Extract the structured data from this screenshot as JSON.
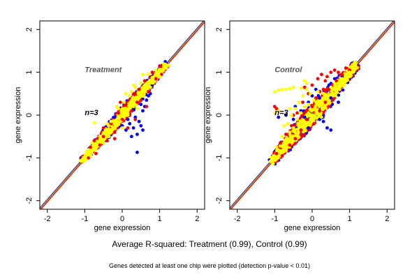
{
  "captions": {
    "main": "Average R-squared: Treatment (0.99), Control (0.99)",
    "sub": "Genes detected at least one chip were plotted (detection p-value < 0.01)"
  },
  "colors": {
    "frame": "#000000",
    "diagonal_red": "#e00000",
    "diagonal_blue": "#1f3fbf",
    "diagonal_orange": "#e08a00",
    "series_blue": "#0000ff",
    "series_red": "#ff0000",
    "series_yellow": "#ffff00",
    "annotation": "#555555"
  },
  "chart_data": [
    {
      "type": "scatter",
      "title": "",
      "xlabel": "gene expression",
      "ylabel": "gene expression",
      "xlim": [
        -2.2,
        2.2
      ],
      "ylim": [
        -2.2,
        2.2
      ],
      "xticks": [
        -2,
        -1,
        0,
        1,
        2
      ],
      "yticks": [
        -2,
        -1,
        0,
        1,
        2
      ],
      "grid": false,
      "annotations": [
        {
          "text": "Treatment",
          "x": -1.0,
          "y": 1.0
        },
        {
          "text": "n=3",
          "x": -1.0,
          "y": 0.0
        }
      ],
      "band": {
        "xmin": -1.1,
        "xmax": 1.2,
        "halfwidth": 0.09
      },
      "series": [
        {
          "color": "blue",
          "points": [
            [
              -0.2,
              -0.05
            ],
            [
              0.0,
              -0.25
            ],
            [
              0.1,
              -0.35
            ],
            [
              0.2,
              -0.2
            ],
            [
              0.3,
              -0.3
            ],
            [
              0.35,
              -0.05
            ],
            [
              0.4,
              -0.45
            ],
            [
              0.45,
              -0.15
            ],
            [
              0.5,
              -0.25
            ],
            [
              0.55,
              0.1
            ],
            [
              0.6,
              0.2
            ],
            [
              0.65,
              0.35
            ],
            [
              0.4,
              -0.87
            ],
            [
              0.7,
              0.45
            ],
            [
              0.25,
              -0.5
            ],
            [
              0.75,
              0.5
            ],
            [
              0.8,
              0.7
            ],
            [
              0.9,
              0.85
            ],
            [
              0.5,
              0.25
            ],
            [
              0.15,
              -0.1
            ],
            [
              -0.05,
              -0.15
            ],
            [
              0.55,
              -0.35
            ],
            [
              0.3,
              0.15
            ]
          ]
        },
        {
          "color": "red",
          "points": [
            [
              -0.9,
              -1.0
            ],
            [
              -0.85,
              -0.75
            ],
            [
              -0.7,
              -0.9
            ],
            [
              -0.75,
              -0.6
            ],
            [
              -0.6,
              -0.7
            ],
            [
              -0.5,
              -0.5
            ],
            [
              -0.4,
              -0.6
            ],
            [
              -0.3,
              -0.2
            ],
            [
              -0.2,
              -0.4
            ],
            [
              -0.1,
              0.05
            ],
            [
              0.0,
              -0.1
            ],
            [
              0.1,
              0.25
            ],
            [
              0.2,
              0.0
            ],
            [
              0.3,
              0.5
            ],
            [
              0.4,
              0.3
            ],
            [
              0.45,
              0.6
            ],
            [
              0.5,
              0.35
            ],
            [
              0.6,
              0.8
            ],
            [
              0.7,
              0.55
            ],
            [
              0.8,
              1.0
            ],
            [
              0.9,
              0.85
            ],
            [
              1.0,
              1.15
            ],
            [
              1.05,
              0.95
            ],
            [
              -0.2,
              -0.55
            ],
            [
              -0.5,
              -0.3
            ],
            [
              0.65,
              0.2
            ],
            [
              0.15,
              -0.3
            ],
            [
              -0.05,
              0.3
            ],
            [
              0.25,
              0.1
            ],
            [
              0.35,
              -0.1
            ]
          ]
        },
        {
          "color": "yellow",
          "points": [
            [
              -0.95,
              -0.85
            ],
            [
              -0.85,
              -0.95
            ],
            [
              -0.8,
              -0.65
            ],
            [
              -0.7,
              -0.8
            ],
            [
              -0.6,
              -0.5
            ],
            [
              -0.5,
              -0.65
            ],
            [
              -0.45,
              -0.35
            ],
            [
              -0.35,
              -0.5
            ],
            [
              -0.3,
              -0.15
            ],
            [
              -0.2,
              -0.3
            ],
            [
              -0.1,
              0.15
            ],
            [
              -0.05,
              -0.15
            ],
            [
              0.05,
              0.3
            ],
            [
              0.15,
              0.0
            ],
            [
              0.2,
              0.45
            ],
            [
              0.3,
              0.2
            ],
            [
              0.35,
              0.65
            ],
            [
              0.45,
              0.4
            ],
            [
              0.5,
              0.75
            ],
            [
              0.6,
              0.55
            ],
            [
              0.7,
              0.95
            ],
            [
              0.8,
              0.75
            ],
            [
              0.9,
              1.05
            ],
            [
              1.0,
              0.9
            ],
            [
              1.1,
              1.2
            ],
            [
              0.1,
              0.5
            ],
            [
              0.3,
              0.7
            ],
            [
              0.25,
              0.55
            ],
            [
              -0.75,
              -0.18
            ],
            [
              -0.4,
              -0.2
            ],
            [
              0.55,
              0.95
            ],
            [
              0.0,
              -0.3
            ],
            [
              0.4,
              0.15
            ],
            [
              -0.15,
              0.2
            ],
            [
              0.75,
              0.65
            ]
          ]
        }
      ]
    },
    {
      "type": "scatter",
      "title": "",
      "xlabel": "gene expression",
      "ylabel": "gene expression",
      "xlim": [
        -2.2,
        2.2
      ],
      "ylim": [
        -2.2,
        2.2
      ],
      "xticks": [
        -2,
        -1,
        0,
        1,
        2
      ],
      "yticks": [
        -2,
        -1,
        0,
        1,
        2
      ],
      "grid": false,
      "annotations": [
        {
          "text": "Control",
          "x": -1.0,
          "y": 1.0
        },
        {
          "text": "n=3",
          "x": -1.0,
          "y": 0.0
        }
      ],
      "band": {
        "xmin": -1.1,
        "xmax": 1.2,
        "halfwidth": 0.14
      },
      "series": [
        {
          "color": "blue",
          "points": [
            [
              -0.9,
              -0.05
            ],
            [
              -0.7,
              0.0
            ],
            [
              -0.5,
              -0.1
            ],
            [
              -0.45,
              0.2
            ],
            [
              -0.3,
              0.1
            ],
            [
              -0.2,
              -0.05
            ],
            [
              -0.1,
              0.3
            ],
            [
              0.0,
              0.45
            ],
            [
              0.1,
              0.6
            ],
            [
              0.2,
              0.4
            ],
            [
              0.3,
              -0.15
            ],
            [
              0.4,
              -0.3
            ],
            [
              0.45,
              0.7
            ],
            [
              0.5,
              -0.35
            ],
            [
              0.6,
              0.85
            ],
            [
              0.7,
              0.3
            ],
            [
              0.8,
              0.9
            ],
            [
              0.9,
              0.95
            ],
            [
              0.5,
              0.4
            ],
            [
              -0.1,
              -0.3
            ],
            [
              0.2,
              -0.1
            ]
          ]
        },
        {
          "color": "red",
          "points": [
            [
              -0.95,
              -0.9
            ],
            [
              -0.85,
              -0.65
            ],
            [
              -0.8,
              -0.95
            ],
            [
              -0.7,
              -0.45
            ],
            [
              -0.6,
              -0.7
            ],
            [
              -0.55,
              -0.25
            ],
            [
              -0.45,
              -0.55
            ],
            [
              -0.4,
              0.05
            ],
            [
              -0.3,
              -0.35
            ],
            [
              -0.25,
              0.3
            ],
            [
              -0.15,
              -0.1
            ],
            [
              -0.1,
              0.5
            ],
            [
              0.0,
              0.2
            ],
            [
              0.0,
              0.7
            ],
            [
              0.1,
              0.4
            ],
            [
              0.15,
              0.85
            ],
            [
              0.2,
              0.55
            ],
            [
              0.25,
              0.95
            ],
            [
              0.3,
              0.6
            ],
            [
              0.35,
              0.8
            ],
            [
              0.4,
              0.9
            ],
            [
              0.45,
              0.6
            ],
            [
              0.5,
              1.0
            ],
            [
              0.55,
              0.7
            ],
            [
              0.6,
              1.05
            ],
            [
              0.65,
              0.8
            ],
            [
              0.7,
              1.0
            ],
            [
              0.8,
              0.95
            ],
            [
              0.9,
              1.1
            ],
            [
              1.0,
              1.05
            ],
            [
              -1.0,
              0.2
            ],
            [
              -0.95,
              0.15
            ],
            [
              -0.9,
              0.1
            ],
            [
              -0.2,
              0.65
            ],
            [
              0.05,
              -0.2
            ],
            [
              0.2,
              0.1
            ],
            [
              -0.5,
              0.0
            ],
            [
              0.35,
              0.3
            ]
          ]
        },
        {
          "color": "yellow",
          "points": [
            [
              -1.0,
              -1.0
            ],
            [
              -0.95,
              -0.75
            ],
            [
              -0.85,
              -0.85
            ],
            [
              -0.8,
              -0.5
            ],
            [
              -0.75,
              -0.25
            ],
            [
              -0.7,
              -0.6
            ],
            [
              -0.65,
              -0.2
            ],
            [
              -0.6,
              -0.4
            ],
            [
              -0.55,
              0.0
            ],
            [
              -0.5,
              -0.3
            ],
            [
              -0.45,
              0.15
            ],
            [
              -0.4,
              -0.1
            ],
            [
              -0.35,
              0.3
            ],
            [
              -0.3,
              0.05
            ],
            [
              -0.25,
              0.45
            ],
            [
              -0.2,
              0.2
            ],
            [
              -0.15,
              0.6
            ],
            [
              -0.1,
              0.25
            ],
            [
              -0.05,
              0.5
            ],
            [
              0.0,
              0.0
            ],
            [
              0.05,
              0.35
            ],
            [
              0.1,
              0.1
            ],
            [
              0.15,
              0.55
            ],
            [
              0.2,
              0.3
            ],
            [
              0.3,
              0.5
            ],
            [
              0.4,
              0.45
            ],
            [
              0.5,
              0.65
            ],
            [
              0.6,
              0.7
            ],
            [
              0.7,
              0.75
            ],
            [
              0.8,
              0.85
            ],
            [
              0.9,
              0.95
            ],
            [
              1.0,
              1.0
            ],
            [
              1.1,
              1.1
            ],
            [
              -1.0,
              0.55
            ],
            [
              -0.9,
              0.58
            ],
            [
              -0.8,
              0.6
            ],
            [
              -0.7,
              0.6
            ],
            [
              -0.6,
              0.62
            ],
            [
              -0.5,
              0.65
            ],
            [
              -0.3,
              0.63
            ],
            [
              -0.2,
              0.8
            ],
            [
              -0.15,
              0.75
            ],
            [
              -1.0,
              0.05
            ],
            [
              -0.9,
              0.1
            ],
            [
              -0.6,
              0.15
            ],
            [
              -0.3,
              -0.15
            ],
            [
              0.25,
              -0.05
            ]
          ]
        }
      ]
    }
  ]
}
